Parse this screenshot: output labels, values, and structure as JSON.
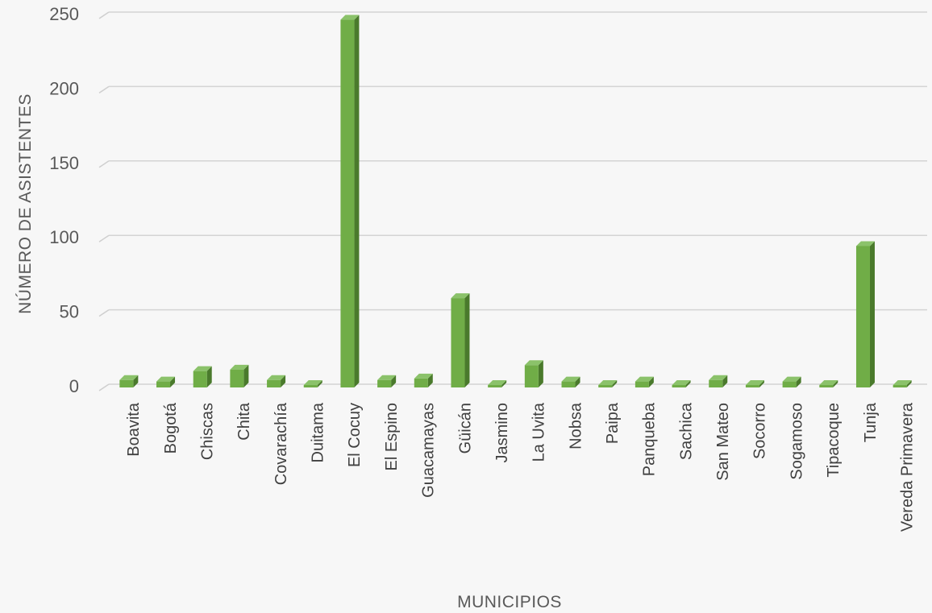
{
  "chart_data": {
    "type": "bar",
    "style": "3d-column",
    "xlabel": "MUNICIPIOS",
    "ylabel": "NÚMERO DE ASISTENTES",
    "ylim": [
      0,
      250
    ],
    "yticks": [
      "0",
      "50",
      "100",
      "150",
      "200",
      "250"
    ],
    "grid": true,
    "legend": "none",
    "bar_color": "#70ad47",
    "categories": [
      "Boavita",
      "Bogotá",
      "Chiscas",
      "Chita",
      "Covarachía",
      "Duitama",
      "El Cocuy",
      "El Espino",
      "Guacamayas",
      "Güicán",
      "Jasmino",
      "La Uvita",
      "Nobsa",
      "Paipa",
      "Panqueba",
      "Sachica",
      "San Mateo",
      "Socorro",
      "Sogamoso",
      "Tipacoque",
      "Tunja",
      "Vereda Primavera"
    ],
    "values": [
      5,
      4,
      11,
      12,
      5,
      1,
      247,
      5,
      6,
      60,
      1,
      15,
      4,
      1,
      4,
      1,
      5,
      1,
      4,
      1,
      95,
      1
    ]
  }
}
